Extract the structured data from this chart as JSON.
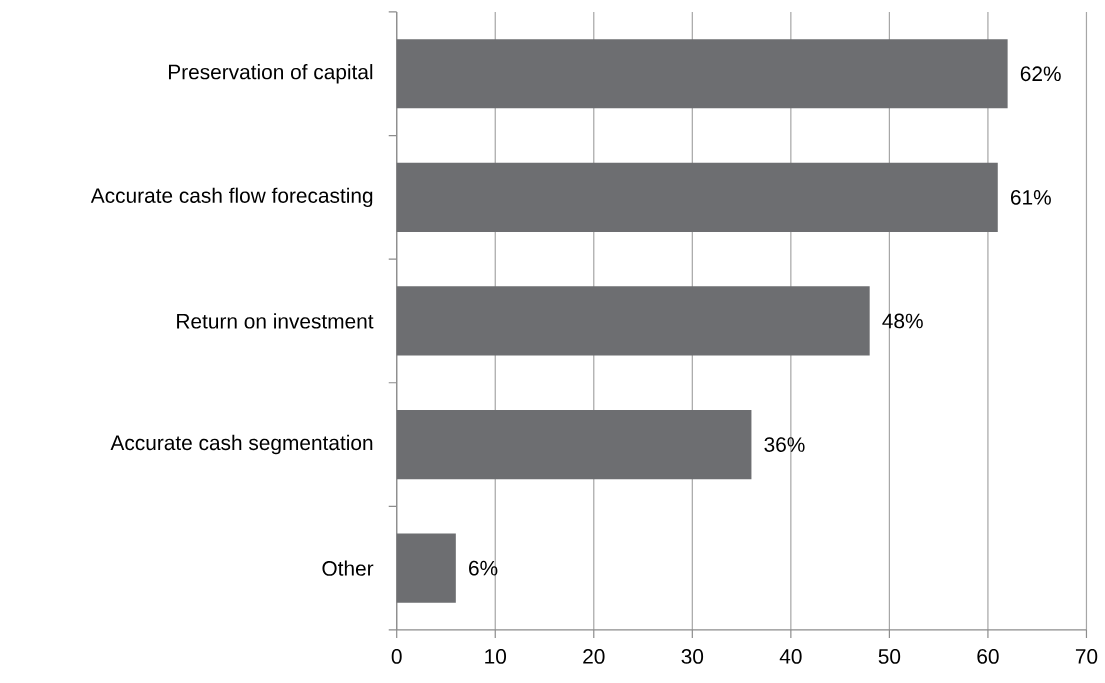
{
  "chart_data": {
    "type": "bar",
    "orientation": "horizontal",
    "categories": [
      "Preservation of capital",
      "Accurate cash flow forecasting",
      "Return on investment",
      "Accurate cash segmentation",
      "Other"
    ],
    "values": [
      62,
      61,
      48,
      36,
      6
    ],
    "value_labels": [
      "62%",
      "61%",
      "48%",
      "36%",
      "6%"
    ],
    "color": "#6d6e71",
    "xlim": [
      0,
      70
    ],
    "xticks": [
      0,
      10,
      20,
      30,
      40,
      50,
      60,
      70
    ],
    "grid": "x"
  }
}
